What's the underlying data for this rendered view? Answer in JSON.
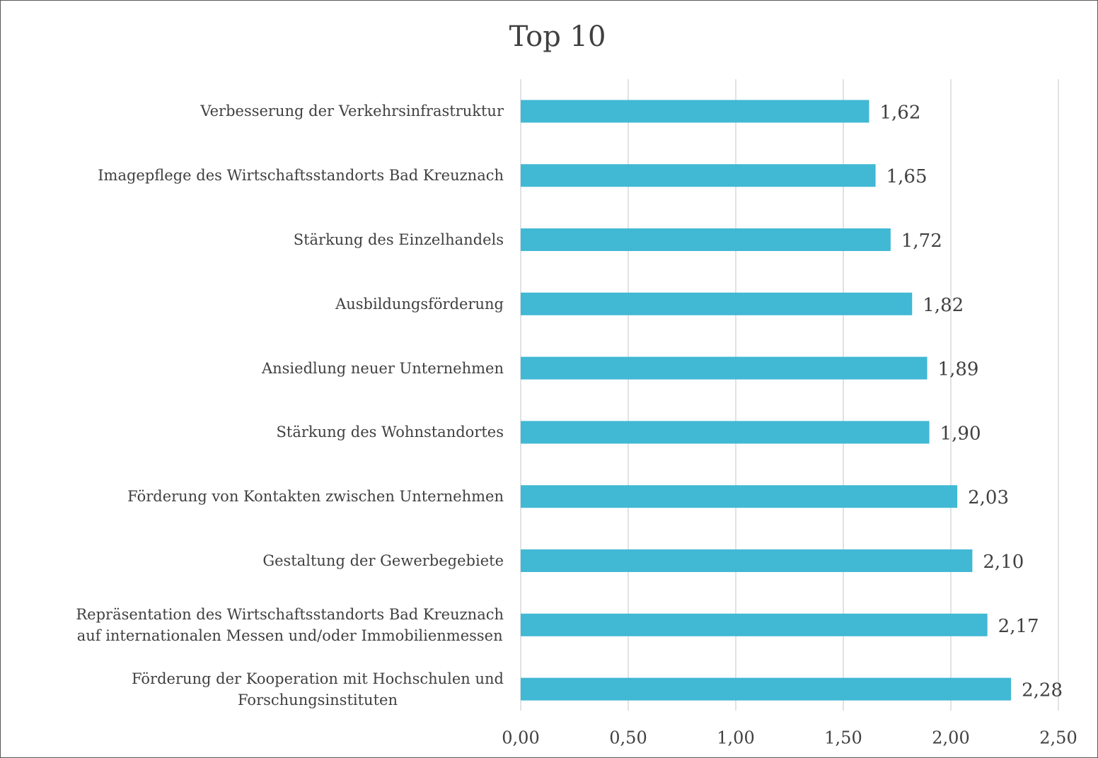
{
  "chart_data": {
    "type": "bar",
    "orientation": "horizontal",
    "title": "Top 10",
    "categories": [
      "Verbesserung der Verkehrsinfrastruktur",
      "Imagepflege des Wirtschaftsstandorts Bad Kreuznach",
      "Stärkung des Einzelhandels",
      "Ausbildungsförderung",
      "Ansiedlung neuer Unternehmen",
      "Stärkung des Wohnstandortes",
      "Förderung von Kontakten zwischen Unternehmen",
      "Gestaltung der Gewerbegebiete",
      "Repräsentation des Wirtschaftsstandorts Bad Kreuznach\nauf internationalen Messen und/oder Immobilienmessen",
      "Förderung der Kooperation mit Hochschulen und\nForschungsinstituten"
    ],
    "values": [
      1.62,
      1.65,
      1.72,
      1.82,
      1.89,
      1.9,
      2.03,
      2.1,
      2.17,
      2.28
    ],
    "value_labels": [
      "1,62",
      "1,65",
      "1,72",
      "1,82",
      "1,89",
      "1,90",
      "2,03",
      "2,10",
      "2,17",
      "2,28"
    ],
    "color": "#41b8d4",
    "xlim": [
      0,
      2.5
    ],
    "xticks": [
      {
        "value": 0,
        "label": "0,00"
      },
      {
        "value": 0.5,
        "label": "0,50"
      },
      {
        "value": 1,
        "label": "1,00"
      },
      {
        "value": 1.5,
        "label": "1,50"
      },
      {
        "value": 2,
        "label": "2,00"
      },
      {
        "value": 2.5,
        "label": "2,50"
      }
    ],
    "grid": true
  }
}
